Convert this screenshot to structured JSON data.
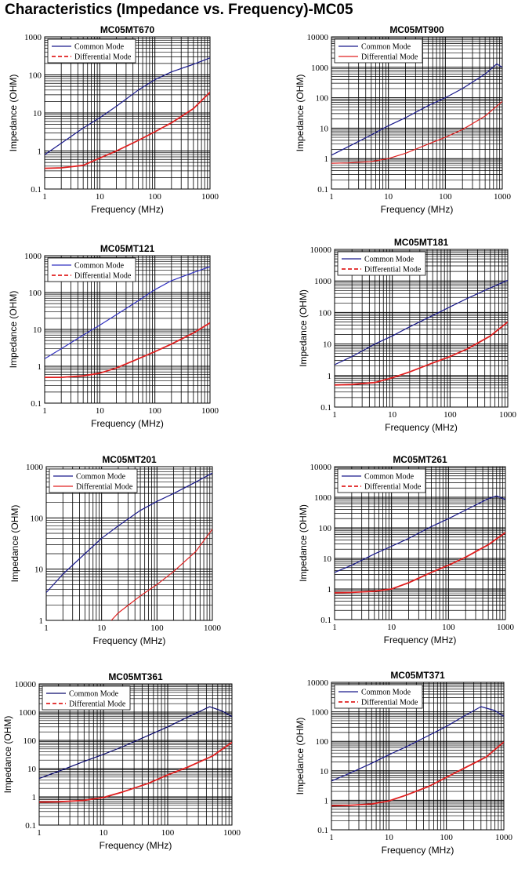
{
  "page": {
    "title": "Characteristics (Impedance vs. Frequency)-MC05"
  },
  "chart_data": [
    {
      "type": "line",
      "title": "MC05MT670",
      "xlabel": "Frequency (MHz)",
      "ylabel": "Impedance (OHM)",
      "xscale": "log",
      "yscale": "log",
      "xlim": [
        1,
        1000
      ],
      "ylim": [
        0.1,
        1000
      ],
      "xticks": [
        "1",
        "10",
        "100",
        "1000"
      ],
      "yticks": [
        "0.1",
        "1",
        "10",
        "100",
        "1000"
      ],
      "legend": "top-left",
      "grid": true,
      "series": [
        {
          "name": "Common Mode",
          "color": "#1a1a8c",
          "style": "solid",
          "x": [
            1,
            2,
            5,
            10,
            20,
            50,
            100,
            200,
            500,
            1000
          ],
          "y": [
            0.8,
            1.6,
            4,
            7.5,
            15,
            40,
            75,
            120,
            190,
            280
          ]
        },
        {
          "name": "Differential Mode",
          "color": "#e02020",
          "style": "dashed",
          "x": [
            1,
            2,
            5,
            10,
            20,
            50,
            100,
            200,
            500,
            1000
          ],
          "y": [
            0.35,
            0.36,
            0.42,
            0.65,
            1.0,
            1.9,
            3.2,
            5.5,
            13,
            35
          ]
        }
      ]
    },
    {
      "type": "line",
      "title": "MC05MT900",
      "xlabel": "Frequency (MHz)",
      "ylabel": "Impedance (OHM)",
      "xscale": "log",
      "yscale": "log",
      "xlim": [
        1,
        1000
      ],
      "ylim": [
        0.1,
        10000
      ],
      "xticks": [
        "1",
        "10",
        "100",
        "1000"
      ],
      "yticks": [
        "0.1",
        "1",
        "10",
        "100",
        "1000",
        "10000"
      ],
      "legend": "top-left",
      "grid": true,
      "series": [
        {
          "name": "Common Mode",
          "color": "#1a1a8c",
          "style": "solid",
          "x": [
            1,
            2,
            5,
            10,
            20,
            50,
            100,
            200,
            500,
            800,
            1000
          ],
          "y": [
            1.3,
            2.5,
            6,
            12,
            22,
            55,
            100,
            200,
            600,
            1300,
            1000
          ]
        },
        {
          "name": "Differential Mode",
          "color": "#e02020",
          "style": "solid",
          "x": [
            1,
            2,
            5,
            10,
            20,
            50,
            100,
            200,
            500,
            1000
          ],
          "y": [
            0.7,
            0.72,
            0.8,
            1.0,
            1.5,
            3,
            5,
            9,
            25,
            75
          ]
        }
      ]
    },
    {
      "type": "line",
      "title": "MC05MT121",
      "xlabel": "Frequency (MHz)",
      "ylabel": "Impedance (OHM)",
      "xscale": "log",
      "yscale": "log",
      "xlim": [
        1,
        1000
      ],
      "ylim": [
        0.1,
        1000
      ],
      "xticks": [
        "1",
        "10",
        "100",
        "1000"
      ],
      "yticks": [
        "0.1",
        "1",
        "10",
        "100",
        "1000"
      ],
      "legend": "top-left",
      "grid": true,
      "series": [
        {
          "name": "Common Mode",
          "color": "#3030c0",
          "style": "solid",
          "x": [
            1,
            2,
            5,
            10,
            20,
            50,
            100,
            200,
            500,
            1000
          ],
          "y": [
            1.6,
            3,
            7,
            13,
            25,
            60,
            120,
            210,
            350,
            500
          ]
        },
        {
          "name": "Differential Mode",
          "color": "#e02020",
          "style": "dashed",
          "x": [
            1,
            2,
            5,
            10,
            20,
            50,
            100,
            200,
            500,
            1000
          ],
          "y": [
            0.5,
            0.5,
            0.55,
            0.65,
            0.9,
            1.6,
            2.5,
            4,
            8,
            15
          ]
        }
      ]
    },
    {
      "type": "line",
      "title": "MC05MT181",
      "xlabel": "Frequency (MHz)",
      "ylabel": "Impedance (OHM)",
      "xscale": "log",
      "yscale": "log",
      "xlim": [
        1,
        1000
      ],
      "ylim": [
        0.1,
        10000
      ],
      "xticks": [
        "1",
        "10",
        "100",
        "1000"
      ],
      "yticks": [
        "0.1",
        "1",
        "10",
        "100",
        "1000",
        "10000"
      ],
      "legend": "top-left",
      "grid": true,
      "series": [
        {
          "name": "Common Mode",
          "color": "#1a1a8c",
          "style": "solid",
          "x": [
            1,
            2,
            5,
            10,
            20,
            50,
            100,
            200,
            500,
            1000
          ],
          "y": [
            2.2,
            4,
            10,
            18,
            35,
            80,
            150,
            280,
            600,
            1050
          ]
        },
        {
          "name": "Differential Mode",
          "color": "#e02020",
          "style": "dashed",
          "x": [
            1,
            2,
            5,
            10,
            20,
            50,
            100,
            200,
            500,
            1000
          ],
          "y": [
            0.5,
            0.52,
            0.6,
            0.85,
            1.3,
            2.5,
            4,
            7,
            18,
            50
          ]
        }
      ]
    },
    {
      "type": "line",
      "title": "MC05MT201",
      "xlabel": "Frequency (MHz)",
      "ylabel": "Impedance (OHM)",
      "xscale": "log",
      "yscale": "log",
      "xlim": [
        1,
        1000
      ],
      "ylim": [
        1,
        1000
      ],
      "xticks": [
        "1",
        "10",
        "100",
        "1000"
      ],
      "yticks": [
        "1",
        "10",
        "100",
        "1000"
      ],
      "legend": "top-left",
      "grid": true,
      "series": [
        {
          "name": "Common Mode",
          "color": "#1a1a8c",
          "style": "solid",
          "x": [
            1,
            2,
            5,
            10,
            20,
            50,
            100,
            200,
            500,
            1000
          ],
          "y": [
            3.5,
            8,
            20,
            40,
            70,
            140,
            210,
            300,
            500,
            750
          ]
        },
        {
          "name": "Differential Mode",
          "color": "#e02020",
          "style": "solid",
          "x": [
            15,
            20,
            50,
            100,
            200,
            500,
            1000
          ],
          "y": [
            1,
            1.4,
            3,
            5,
            9,
            22,
            60
          ]
        }
      ]
    },
    {
      "type": "line",
      "title": "MC05MT261",
      "xlabel": "Frequency (MHz)",
      "ylabel": "Impedance (OHM)",
      "xscale": "log",
      "yscale": "log",
      "xlim": [
        1,
        1000
      ],
      "ylim": [
        0.1,
        10000
      ],
      "xticks": [
        "1",
        "10",
        "100",
        "1000"
      ],
      "yticks": [
        "0.1",
        "1",
        "10",
        "100",
        "1000",
        "10000"
      ],
      "legend": "top-left",
      "grid": true,
      "series": [
        {
          "name": "Common Mode",
          "color": "#1a1a8c",
          "style": "solid",
          "x": [
            1,
            2,
            5,
            10,
            20,
            50,
            100,
            200,
            500,
            700,
            1000
          ],
          "y": [
            3.5,
            6,
            14,
            25,
            45,
            110,
            200,
            380,
            900,
            1100,
            850
          ]
        },
        {
          "name": "Differential Mode",
          "color": "#e02020",
          "style": "dashed",
          "x": [
            1,
            2,
            5,
            10,
            20,
            50,
            100,
            200,
            500,
            1000
          ],
          "y": [
            0.75,
            0.77,
            0.85,
            1.0,
            1.6,
            3.5,
            6,
            11,
            28,
            70
          ]
        }
      ]
    },
    {
      "type": "line",
      "title": "MC05MT361",
      "xlabel": "Frequency (MHz)",
      "ylabel": "Impedance (OHM)",
      "xscale": "log",
      "yscale": "log",
      "xlim": [
        1,
        1000
      ],
      "ylim": [
        0.1,
        10000
      ],
      "xticks": [
        "1",
        "10",
        "100",
        "1000"
      ],
      "yticks": [
        "0.1",
        "1",
        "10",
        "100",
        "1000",
        "10000"
      ],
      "legend": "top-left",
      "grid": true,
      "series": [
        {
          "name": "Common Mode",
          "color": "#0a0a6e",
          "style": "solid",
          "x": [
            1,
            2,
            5,
            10,
            20,
            50,
            100,
            200,
            450,
            700,
            1000
          ],
          "y": [
            4.5,
            8,
            18,
            32,
            60,
            150,
            300,
            650,
            1550,
            1100,
            700
          ]
        },
        {
          "name": "Differential Mode",
          "color": "#e02020",
          "style": "dashed",
          "x": [
            1,
            2,
            5,
            10,
            20,
            50,
            100,
            200,
            500,
            1000
          ],
          "y": [
            0.65,
            0.67,
            0.75,
            0.95,
            1.5,
            3,
            6,
            11,
            28,
            85
          ]
        }
      ]
    },
    {
      "type": "line",
      "title": "MC05MT371",
      "xlabel": "Frequency (MHz)",
      "ylabel": "Impedance (OHM)",
      "xscale": "log",
      "yscale": "log",
      "xlim": [
        1,
        1000
      ],
      "ylim": [
        0.1,
        10000
      ],
      "xticks": [
        "1",
        "10",
        "100",
        "1000"
      ],
      "yticks": [
        "0.1",
        "1",
        "10",
        "100",
        "1000",
        "10000"
      ],
      "legend": "top-left",
      "grid": true,
      "series": [
        {
          "name": "Common Mode",
          "color": "#1a1a8c",
          "style": "solid",
          "x": [
            1,
            2,
            5,
            10,
            20,
            50,
            100,
            200,
            400,
            700,
            1000
          ],
          "y": [
            4.5,
            8,
            18,
            35,
            65,
            160,
            320,
            700,
            1500,
            1100,
            700
          ]
        },
        {
          "name": "Differential Mode",
          "color": "#e02020",
          "style": "dashed",
          "x": [
            1,
            2,
            5,
            10,
            20,
            50,
            100,
            200,
            500,
            1000
          ],
          "y": [
            0.65,
            0.67,
            0.75,
            0.95,
            1.5,
            3,
            6,
            12,
            30,
            95
          ]
        }
      ]
    }
  ]
}
